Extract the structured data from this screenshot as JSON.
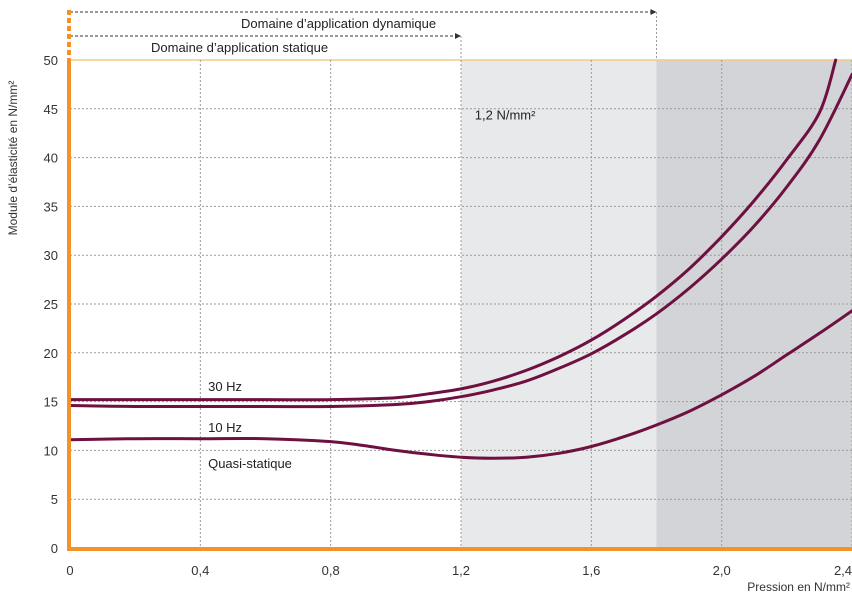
{
  "chart_data": {
    "type": "line",
    "xlabel": "Pression en N/mm²",
    "ylabel": "Module d’élasticité en N/mm²",
    "xlim": [
      0,
      2.4
    ],
    "ylim": [
      0,
      50
    ],
    "x_ticks": [
      "0",
      "0,4",
      "0,8",
      "1,2",
      "1,6",
      "2,0",
      "2,4"
    ],
    "x_tick_values": [
      0,
      0.4,
      0.8,
      1.2,
      1.6,
      2.0,
      2.4
    ],
    "y_ticks": [
      "0",
      "5",
      "10",
      "15",
      "20",
      "25",
      "30",
      "35",
      "40",
      "45",
      "50"
    ],
    "y_tick_values": [
      0,
      5,
      10,
      15,
      20,
      25,
      30,
      35,
      40,
      45,
      50
    ],
    "grid": true,
    "regions": [
      {
        "from": 1.2,
        "to": 1.8,
        "color": "#e8e9eb"
      },
      {
        "from": 1.8,
        "to": 2.4,
        "color": "#d2d4d7"
      }
    ],
    "domains": [
      {
        "label": "Domaine d’application dynamique",
        "to": 1.8
      },
      {
        "label": "Domaine d’application statique",
        "to": 1.2
      }
    ],
    "region_label": {
      "text": "1,2 N/mm²",
      "x": 1.23,
      "y": 44
    },
    "series": [
      {
        "name": "30 Hz",
        "color": "#6e1040",
        "label_at": {
          "x": 0.43,
          "y": 16.5
        },
        "x": [
          0,
          0.2,
          0.4,
          0.6,
          0.8,
          1.0,
          1.1,
          1.2,
          1.3,
          1.4,
          1.5,
          1.6,
          1.7,
          1.8,
          1.9,
          2.0,
          2.1,
          2.2,
          2.3,
          2.35
        ],
        "y": [
          15.2,
          15.2,
          15.2,
          15.2,
          15.2,
          15.4,
          15.8,
          16.3,
          17.1,
          18.2,
          19.6,
          21.3,
          23.4,
          25.8,
          28.6,
          31.9,
          35.6,
          39.8,
          44.6,
          50.0
        ]
      },
      {
        "name": "10 Hz",
        "color": "#6e1040",
        "label_at": {
          "x": 0.43,
          "y": 12.3
        },
        "x": [
          0,
          0.2,
          0.4,
          0.6,
          0.8,
          1.0,
          1.1,
          1.2,
          1.3,
          1.4,
          1.5,
          1.6,
          1.7,
          1.8,
          1.9,
          2.0,
          2.1,
          2.2,
          2.3,
          2.4
        ],
        "y": [
          14.6,
          14.5,
          14.5,
          14.5,
          14.5,
          14.7,
          15.0,
          15.5,
          16.2,
          17.1,
          18.4,
          19.9,
          21.8,
          24.0,
          26.6,
          29.6,
          33.0,
          37.0,
          41.8,
          48.5
        ]
      },
      {
        "name": "Quasi-statique",
        "color": "#6e1040",
        "label_at": {
          "x": 0.43,
          "y": 8.6
        },
        "x": [
          0,
          0.2,
          0.4,
          0.6,
          0.8,
          0.9,
          1.0,
          1.1,
          1.2,
          1.3,
          1.4,
          1.5,
          1.6,
          1.7,
          1.8,
          1.9,
          2.0,
          2.1,
          2.2,
          2.3,
          2.4
        ],
        "y": [
          11.1,
          11.2,
          11.2,
          11.2,
          10.9,
          10.5,
          10.0,
          9.6,
          9.3,
          9.2,
          9.3,
          9.7,
          10.4,
          11.4,
          12.6,
          14.0,
          15.7,
          17.6,
          19.8,
          22.0,
          24.3
        ]
      }
    ]
  },
  "colors": {
    "axis": "#f29229",
    "curve": "#6e1040",
    "grid": "#9a9a9a",
    "top_line": "#f6c985"
  }
}
